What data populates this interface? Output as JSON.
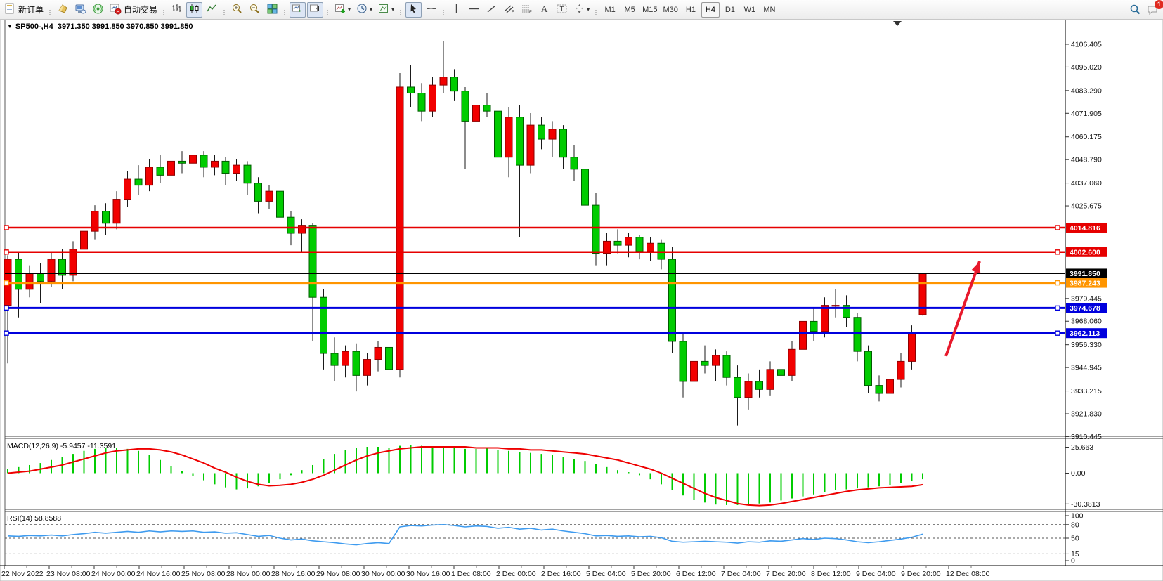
{
  "toolbar": {
    "new_order": {
      "label": "新订单",
      "icon": "new-order-icon"
    },
    "auto_trading": {
      "label": "自动交易",
      "icon": "auto-trading-icon"
    },
    "left_icons": [
      "market-depth-icon",
      "terminal-icon",
      "signal-icon"
    ],
    "chart_modes": [
      {
        "icon": "bar-chart-icon",
        "active": false
      },
      {
        "icon": "candlestick-chart-icon",
        "active": true
      },
      {
        "icon": "line-chart-icon",
        "active": false
      }
    ],
    "view_tools": [
      "zoom-in-icon",
      "zoom-out-icon",
      "tile-windows-icon"
    ],
    "scroll_tools": [
      {
        "icon": "auto-scroll-icon",
        "active": true
      },
      {
        "icon": "chart-shift-icon",
        "active": true
      }
    ],
    "dropdown_tools": [
      "indicators-icon",
      "periods-clock-icon",
      "template-icon"
    ],
    "pointer_tools": [
      {
        "icon": "cursor-icon",
        "active": true
      },
      {
        "icon": "crosshair-icon",
        "active": false
      }
    ],
    "draw_tools": [
      "vertical-line-icon",
      "horizontal-line-icon",
      "trendline-icon",
      "channel-icon",
      "fibonacci-icon",
      "text-icon",
      "text-label-icon",
      "arrows-icon"
    ],
    "timeframes": [
      "M1",
      "M5",
      "M15",
      "M30",
      "H1",
      "H4",
      "D1",
      "W1",
      "MN"
    ],
    "active_timeframe": "H4",
    "search_icon": "search-icon",
    "chat_icon": "chat-icon",
    "notification_count": "1"
  },
  "chart": {
    "symbol_period": "SP500-,H4",
    "ohlc_text": "3971.350 3991.850 3970.850 3991.850",
    "open": "3971.350",
    "high": "3991.850",
    "low": "3970.850",
    "close": "3991.850"
  },
  "price_axis": {
    "ticks": [
      4106.405,
      4095.02,
      4083.29,
      4071.905,
      4060.175,
      4048.79,
      4037.06,
      4025.675,
      3979.445,
      3968.06,
      3956.33,
      3944.945,
      3933.215,
      3921.83,
      3910.445
    ],
    "badges": [
      {
        "value": 4014.816,
        "color": "#e60000"
      },
      {
        "value": 4002.6,
        "color": "#e60000"
      },
      {
        "value": 3991.85,
        "color": "#000000"
      },
      {
        "value": 3987.243,
        "color": "#ff9500"
      },
      {
        "value": 3974.678,
        "color": "#0000dd"
      },
      {
        "value": 3962.113,
        "color": "#0000dd"
      }
    ]
  },
  "hlines": [
    {
      "price": 4014.816,
      "color": "#e60000",
      "width": 2.5,
      "handles": true
    },
    {
      "price": 4002.6,
      "color": "#e60000",
      "width": 2.5,
      "handles": true
    },
    {
      "price": 3991.85,
      "color": "#000000",
      "width": 1.2,
      "handles": false
    },
    {
      "price": 3987.243,
      "color": "#ff9500",
      "width": 3,
      "handles": true
    },
    {
      "price": 3974.678,
      "color": "#0000dd",
      "width": 3,
      "handles": true
    },
    {
      "price": 3962.113,
      "color": "#0000dd",
      "width": 3,
      "handles": true
    }
  ],
  "indicators": {
    "macd": {
      "label": "MACD(12,26,9)",
      "values": "-5.9457 -11.3591",
      "full_label": "MACD(12,26,9) -5.9457 -11.3591",
      "axis": [
        25.663,
        0.0,
        -30.3813
      ],
      "axis_text": [
        "25.663",
        "0.00",
        "-30.3813"
      ]
    },
    "rsi": {
      "label": "RSI(14)",
      "value": "58.8588",
      "full_label": "RSI(14) 58.8588",
      "axis_text": [
        "100",
        "80",
        "50",
        "15",
        "0"
      ],
      "axis_values": [
        100,
        80,
        50,
        15,
        0
      ],
      "levels": [
        80,
        50,
        15
      ]
    }
  },
  "time_axis": {
    "labels": [
      "22 Nov 2022",
      "23 Nov 08:00",
      "24 Nov 00:00",
      "24 Nov 16:00",
      "25 Nov 08:00",
      "28 Nov 00:00",
      "28 Nov 16:00",
      "29 Nov 08:00",
      "30 Nov 00:00",
      "30 Nov 16:00",
      "1 Dec 08:00",
      "2 Dec 00:00",
      "2 Dec 16:00",
      "5 Dec 04:00",
      "5 Dec 20:00",
      "6 Dec 12:00",
      "7 Dec 04:00",
      "7 Dec 20:00",
      "8 Dec 12:00",
      "9 Dec 04:00",
      "9 Dec 20:00",
      "12 Dec 08:00"
    ]
  },
  "annotations": {
    "arrow": {
      "from": [
        1346,
        507
      ],
      "to": [
        1394,
        372
      ],
      "color": "#e8192c",
      "width": 4
    }
  },
  "chart_data": {
    "type": "candlestick",
    "note": "Chinese color convention: red = bullish (up), green = bearish (down)",
    "up_color": "#f20000",
    "down_color": "#00cc00",
    "price_range_visible": [
      3910.445,
      4106.405
    ],
    "candles": [
      [
        3976,
        4001,
        3947,
        3999
      ],
      [
        3999,
        4003,
        3970,
        3984
      ],
      [
        3984,
        3996,
        3980,
        3992
      ],
      [
        3992,
        3997,
        3977,
        3988
      ],
      [
        3988,
        4003,
        3985,
        3999
      ],
      [
        3999,
        4004,
        3984,
        3991
      ],
      [
        3991,
        4008,
        3988,
        4004
      ],
      [
        4004,
        4016,
        4000,
        4013
      ],
      [
        4013,
        4026,
        4009,
        4023
      ],
      [
        4023,
        4027,
        4011,
        4017
      ],
      [
        4017,
        4033,
        4014,
        4029
      ],
      [
        4029,
        4043,
        4025,
        4039
      ],
      [
        4039,
        4046,
        4031,
        4036
      ],
      [
        4036,
        4049,
        4033,
        4045
      ],
      [
        4045,
        4051,
        4037,
        4041
      ],
      [
        4041,
        4052,
        4038,
        4048
      ],
      [
        4048,
        4053,
        4042,
        4047
      ],
      [
        4047,
        4054,
        4043,
        4051
      ],
      [
        4051,
        4053,
        4040,
        4045
      ],
      [
        4045,
        4051,
        4041,
        4048
      ],
      [
        4048,
        4050,
        4036,
        4042
      ],
      [
        4042,
        4049,
        4038,
        4046
      ],
      [
        4046,
        4048,
        4031,
        4037
      ],
      [
        4037,
        4040,
        4022,
        4028
      ],
      [
        4028,
        4036,
        4024,
        4033
      ],
      [
        4033,
        4034,
        4015,
        4020
      ],
      [
        4020,
        4023,
        4006,
        4012
      ],
      [
        4012,
        4019,
        4003,
        4016
      ],
      [
        4016,
        4017,
        3958,
        3980
      ],
      [
        3980,
        3984,
        3944,
        3952
      ],
      [
        3952,
        3960,
        3938,
        3946
      ],
      [
        3946,
        3956,
        3940,
        3953
      ],
      [
        3953,
        3957,
        3933,
        3941
      ],
      [
        3941,
        3952,
        3936,
        3949
      ],
      [
        3949,
        3958,
        3943,
        3955
      ],
      [
        3955,
        3959,
        3938,
        3944
      ],
      [
        3944,
        4092,
        3940,
        4085
      ],
      [
        4085,
        4096,
        4075,
        4082
      ],
      [
        4082,
        4087,
        4068,
        4073
      ],
      [
        4073,
        4090,
        4070,
        4086
      ],
      [
        4086,
        4108,
        4082,
        4090
      ],
      [
        4090,
        4094,
        4078,
        4083
      ],
      [
        4083,
        4085,
        4044,
        4068
      ],
      [
        4068,
        4080,
        4058,
        4076
      ],
      [
        4076,
        4082,
        4070,
        4073
      ],
      [
        4073,
        4078,
        3976,
        4050
      ],
      [
        4050,
        4075,
        4040,
        4070
      ],
      [
        4070,
        4076,
        4010,
        4046
      ],
      [
        4046,
        4072,
        4042,
        4066
      ],
      [
        4066,
        4070,
        4054,
        4059
      ],
      [
        4059,
        4068,
        4050,
        4064
      ],
      [
        4064,
        4066,
        4044,
        4050
      ],
      [
        4050,
        4056,
        4038,
        4044
      ],
      [
        4044,
        4048,
        4020,
        4026
      ],
      [
        4026,
        4032,
        3996,
        4002
      ],
      [
        4002,
        4012,
        3996,
        4008
      ],
      [
        4008,
        4014,
        4002,
        4006
      ],
      [
        4006,
        4012,
        4000,
        4010
      ],
      [
        4010,
        4011,
        3999,
        4003
      ],
      [
        4003,
        4010,
        3998,
        4007
      ],
      [
        4007,
        4009,
        3994,
        3999
      ],
      [
        3999,
        4005,
        3952,
        3958
      ],
      [
        3958,
        3962,
        3930,
        3938
      ],
      [
        3938,
        3952,
        3934,
        3948
      ],
      [
        3948,
        3956,
        3942,
        3946
      ],
      [
        3946,
        3954,
        3938,
        3951
      ],
      [
        3951,
        3953,
        3936,
        3940
      ],
      [
        3940,
        3946,
        3916,
        3930
      ],
      [
        3930,
        3942,
        3924,
        3938
      ],
      [
        3938,
        3944,
        3930,
        3934
      ],
      [
        3934,
        3948,
        3931,
        3944
      ],
      [
        3944,
        3950,
        3936,
        3941
      ],
      [
        3941,
        3958,
        3938,
        3954
      ],
      [
        3954,
        3972,
        3950,
        3968
      ],
      [
        3968,
        3975,
        3958,
        3963
      ],
      [
        3963,
        3980,
        3960,
        3976
      ],
      [
        3976,
        3984,
        3970,
        3976
      ],
      [
        3976,
        3981,
        3965,
        3970
      ],
      [
        3970,
        3972,
        3948,
        3953
      ],
      [
        3953,
        3956,
        3932,
        3936
      ],
      [
        3936,
        3941,
        3928,
        3932
      ],
      [
        3932,
        3942,
        3929,
        3939
      ],
      [
        3939,
        3952,
        3935,
        3948
      ],
      [
        3948,
        3966,
        3944,
        3962
      ],
      [
        3971.35,
        3991.85,
        3970.85,
        3991.85
      ]
    ],
    "macd_histogram": [
      4,
      6,
      8,
      10,
      13,
      16,
      19,
      22,
      24,
      25,
      25,
      24,
      22,
      18,
      13,
      7,
      2,
      -3,
      -7,
      -11,
      -14,
      -16,
      -15,
      -13,
      -10,
      -6,
      -2,
      3,
      8,
      14,
      19,
      23,
      25,
      26,
      26,
      25,
      27,
      28,
      27,
      26,
      26,
      25,
      24,
      24,
      25,
      23,
      22,
      21,
      20,
      19,
      18,
      16,
      14,
      12,
      9,
      6,
      3,
      1,
      -2,
      -6,
      -11,
      -17,
      -22,
      -26,
      -29,
      -31,
      -31.5,
      -31.5,
      -31,
      -30,
      -29,
      -27,
      -25,
      -23,
      -21,
      -19,
      -17,
      -16,
      -15,
      -14,
      -13,
      -12,
      -10,
      -8,
      -5.95
    ],
    "macd_signal": [
      0,
      1,
      2,
      4,
      6,
      8,
      11,
      14,
      17,
      20,
      22,
      23,
      24,
      24,
      23,
      21,
      18,
      14,
      10,
      5,
      1,
      -4,
      -8,
      -11,
      -12.5,
      -12,
      -11,
      -9,
      -6,
      -2,
      3,
      8,
      13,
      17,
      20,
      22,
      24,
      25,
      26,
      26,
      26,
      26,
      26,
      25,
      25,
      25,
      24,
      24,
      23,
      23,
      22,
      21,
      20,
      19,
      17,
      15,
      13,
      10,
      7,
      4,
      0,
      -5,
      -10,
      -15,
      -20,
      -24,
      -27,
      -30,
      -31.5,
      -32,
      -31.5,
      -30,
      -28,
      -26,
      -24,
      -22,
      -20,
      -18,
      -16.5,
      -15.5,
      -14.5,
      -14,
      -13.5,
      -13,
      -11.36
    ],
    "rsi_series": [
      55,
      54,
      56,
      55,
      57,
      55,
      58,
      60,
      63,
      61,
      63,
      65,
      63,
      66,
      64,
      66,
      65,
      66,
      63,
      64,
      61,
      62,
      58,
      54,
      56,
      50,
      46,
      48,
      44,
      42,
      40,
      37,
      35,
      38,
      40,
      38,
      75,
      78,
      77,
      79,
      80,
      78,
      75,
      77,
      76,
      72,
      74,
      70,
      72,
      68,
      70,
      66,
      63,
      60,
      55,
      56,
      54,
      55,
      53,
      54,
      51,
      43,
      41,
      42,
      43,
      42,
      41,
      39,
      42,
      41,
      44,
      43,
      46,
      49,
      47,
      50,
      49,
      46,
      42,
      40,
      42,
      45,
      48,
      52,
      58.86
    ]
  }
}
